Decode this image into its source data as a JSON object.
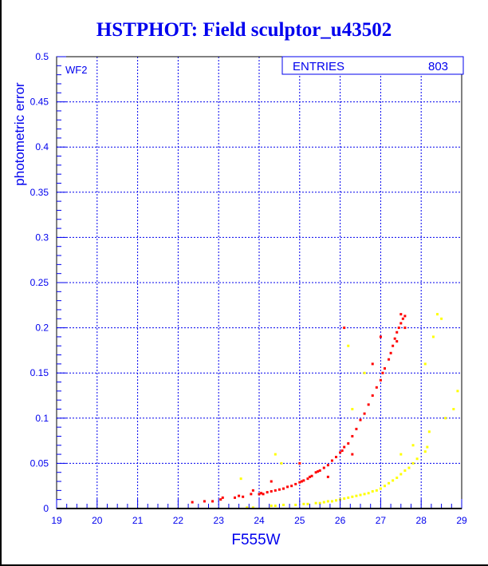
{
  "chart_data": {
    "type": "scatter",
    "title": "HSTPHOT: Field sculptor_u43502",
    "xlabel": "F555W",
    "ylabel": "photometric error",
    "panel_label": "WF2",
    "xlim": [
      19,
      29
    ],
    "ylim": [
      0,
      0.5
    ],
    "x_ticks": [
      "19",
      "20",
      "21",
      "22",
      "23",
      "24",
      "25",
      "26",
      "27",
      "28",
      "29"
    ],
    "y_ticks": [
      "0",
      "0.05",
      "0.1",
      "0.15",
      "0.2",
      "0.25",
      "0.3",
      "0.35",
      "0.4",
      "0.45",
      "0.5"
    ],
    "grid": true,
    "stats_box": {
      "label": "ENTRIES",
      "value": "803"
    },
    "colors": {
      "axis": "#0000ee",
      "frame": "#000000",
      "series_red": "#ff0000",
      "series_yellow": "#ffff00"
    },
    "series": [
      {
        "name": "red",
        "color": "#ff0000",
        "points": [
          [
            22.35,
            0.007
          ],
          [
            22.65,
            0.008
          ],
          [
            22.85,
            0.008
          ],
          [
            23.05,
            0.01
          ],
          [
            23.1,
            0.012
          ],
          [
            23.4,
            0.012
          ],
          [
            23.5,
            0.014
          ],
          [
            23.6,
            0.013
          ],
          [
            23.8,
            0.016
          ],
          [
            23.85,
            0.02
          ],
          [
            24.0,
            0.016
          ],
          [
            24.05,
            0.017
          ],
          [
            24.1,
            0.016
          ],
          [
            24.2,
            0.018
          ],
          [
            24.3,
            0.019
          ],
          [
            24.4,
            0.02
          ],
          [
            24.5,
            0.021
          ],
          [
            24.6,
            0.022
          ],
          [
            24.7,
            0.024
          ],
          [
            24.8,
            0.025
          ],
          [
            24.9,
            0.027
          ],
          [
            25.0,
            0.029
          ],
          [
            25.05,
            0.03
          ],
          [
            25.1,
            0.031
          ],
          [
            25.2,
            0.033
          ],
          [
            25.25,
            0.035
          ],
          [
            25.3,
            0.036
          ],
          [
            25.4,
            0.04
          ],
          [
            25.45,
            0.041
          ],
          [
            25.5,
            0.042
          ],
          [
            25.6,
            0.045
          ],
          [
            25.7,
            0.048
          ],
          [
            25.8,
            0.053
          ],
          [
            25.9,
            0.057
          ],
          [
            26.0,
            0.062
          ],
          [
            26.05,
            0.064
          ],
          [
            26.1,
            0.068
          ],
          [
            26.2,
            0.072
          ],
          [
            26.3,
            0.08
          ],
          [
            26.4,
            0.088
          ],
          [
            26.5,
            0.098
          ],
          [
            26.6,
            0.105
          ],
          [
            26.7,
            0.115
          ],
          [
            26.8,
            0.125
          ],
          [
            26.9,
            0.134
          ],
          [
            27.0,
            0.142
          ],
          [
            27.05,
            0.15
          ],
          [
            27.1,
            0.155
          ],
          [
            27.2,
            0.165
          ],
          [
            27.25,
            0.172
          ],
          [
            27.3,
            0.18
          ],
          [
            27.35,
            0.188
          ],
          [
            27.4,
            0.195
          ],
          [
            27.45,
            0.2
          ],
          [
            27.5,
            0.205
          ],
          [
            27.55,
            0.21
          ],
          [
            27.6,
            0.213
          ],
          [
            27.5,
            0.215
          ],
          [
            27.4,
            0.185
          ],
          [
            27.6,
            0.2
          ],
          [
            26.1,
            0.2
          ],
          [
            25.0,
            0.05
          ],
          [
            24.3,
            0.03
          ],
          [
            26.8,
            0.16
          ],
          [
            26.3,
            0.06
          ],
          [
            27.0,
            0.19
          ],
          [
            25.7,
            0.035
          ]
        ]
      },
      {
        "name": "yellow",
        "color": "#ffff00",
        "points": [
          [
            23.7,
            0.001
          ],
          [
            23.85,
            0.001
          ],
          [
            24.3,
            0.003
          ],
          [
            24.4,
            0.003
          ],
          [
            24.6,
            0.004
          ],
          [
            24.9,
            0.004
          ],
          [
            25.1,
            0.005
          ],
          [
            25.2,
            0.005
          ],
          [
            25.4,
            0.006
          ],
          [
            25.5,
            0.006
          ],
          [
            25.6,
            0.007
          ],
          [
            25.7,
            0.008
          ],
          [
            25.8,
            0.008
          ],
          [
            25.9,
            0.009
          ],
          [
            26.0,
            0.01
          ],
          [
            26.1,
            0.011
          ],
          [
            26.2,
            0.012
          ],
          [
            26.3,
            0.013
          ],
          [
            26.4,
            0.014
          ],
          [
            26.5,
            0.015
          ],
          [
            26.6,
            0.016
          ],
          [
            26.7,
            0.017
          ],
          [
            26.8,
            0.019
          ],
          [
            26.9,
            0.02
          ],
          [
            27.0,
            0.022
          ],
          [
            27.1,
            0.025
          ],
          [
            27.2,
            0.028
          ],
          [
            27.3,
            0.031
          ],
          [
            27.4,
            0.034
          ],
          [
            27.5,
            0.038
          ],
          [
            27.6,
            0.042
          ],
          [
            27.7,
            0.045
          ],
          [
            27.8,
            0.05
          ],
          [
            27.9,
            0.055
          ],
          [
            28.1,
            0.063
          ],
          [
            28.15,
            0.068
          ],
          [
            28.2,
            0.085
          ],
          [
            28.3,
            0.19
          ],
          [
            28.4,
            0.215
          ],
          [
            28.5,
            0.21
          ],
          [
            28.9,
            0.13
          ],
          [
            28.6,
            0.1
          ],
          [
            23.55,
            0.033
          ],
          [
            24.55,
            0.05
          ],
          [
            24.4,
            0.06
          ],
          [
            27.5,
            0.06
          ],
          [
            26.6,
            0.15
          ],
          [
            26.3,
            0.11
          ],
          [
            27.8,
            0.07
          ],
          [
            26.2,
            0.18
          ],
          [
            28.1,
            0.16
          ],
          [
            28.8,
            0.11
          ]
        ]
      }
    ]
  }
}
